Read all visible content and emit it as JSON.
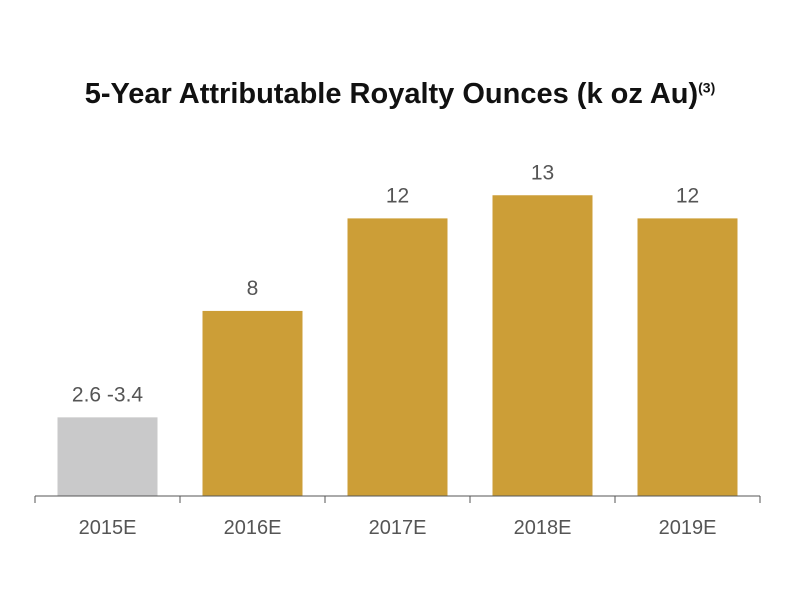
{
  "title": {
    "text": "5-Year Attributable Royalty Ounces (k oz Au)",
    "footnote": "(3)"
  },
  "colors": {
    "estimate_bar": "#c9c9ca",
    "projection_bar": "#cc9e37",
    "axis": "#555555"
  },
  "chart_data": {
    "type": "bar",
    "title": "5-Year Attributable Royalty Ounces (k oz Au)",
    "xlabel": "",
    "ylabel": "",
    "categories": [
      "2015E",
      "2016E",
      "2017E",
      "2018E",
      "2019E"
    ],
    "values": [
      3.4,
      8,
      12,
      13,
      12
    ],
    "range_low": [
      2.6,
      null,
      null,
      null,
      null
    ],
    "data_labels": [
      "2.6 -3.4",
      "8",
      "12",
      "13",
      "12"
    ],
    "bar_colors": [
      "#c9c9ca",
      "#cc9e37",
      "#cc9e37",
      "#cc9e37",
      "#cc9e37"
    ],
    "ylim": [
      0,
      13.4
    ],
    "grid": false,
    "legend": "none"
  }
}
